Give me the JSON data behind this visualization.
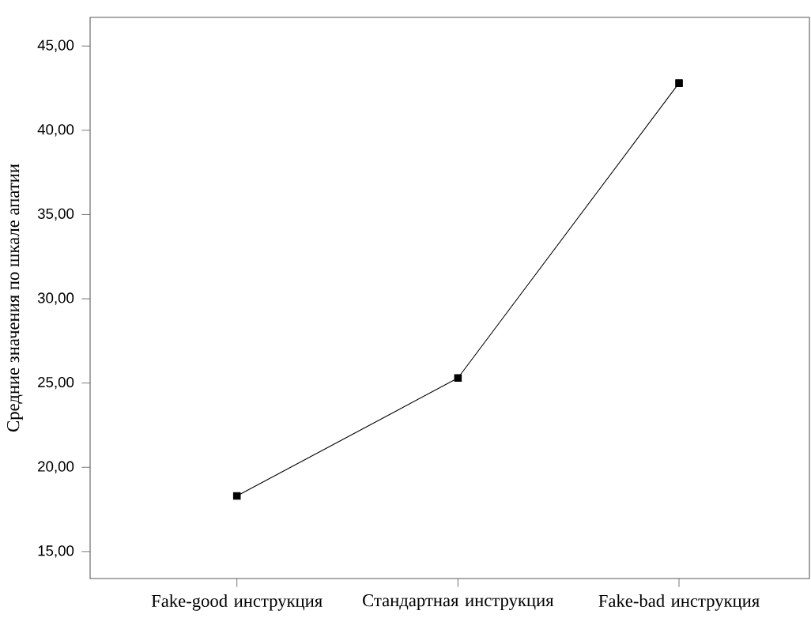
{
  "chart_data": {
    "type": "line",
    "ylabel": "Средние значения по шкале апатии",
    "categories": [
      "Fake-good инструкция",
      "Стандартная инструкция",
      "Fake-bad инструкция"
    ],
    "series": [
      {
        "color": "#000000",
        "values": [
          18.3,
          25.3,
          42.8
        ]
      }
    ],
    "ylim": [
      13.4,
      46.7
    ],
    "yticks": [
      {
        "value": 15,
        "label": "15,00"
      },
      {
        "value": 20,
        "label": "20,00"
      },
      {
        "value": 25,
        "label": "25,00"
      },
      {
        "value": 30,
        "label": "30,00"
      },
      {
        "value": 35,
        "label": "35,00"
      },
      {
        "value": 40,
        "label": "40,00"
      },
      {
        "value": 45,
        "label": "45,00"
      }
    ],
    "marker": "square",
    "line_style": "solid",
    "grid": false
  }
}
